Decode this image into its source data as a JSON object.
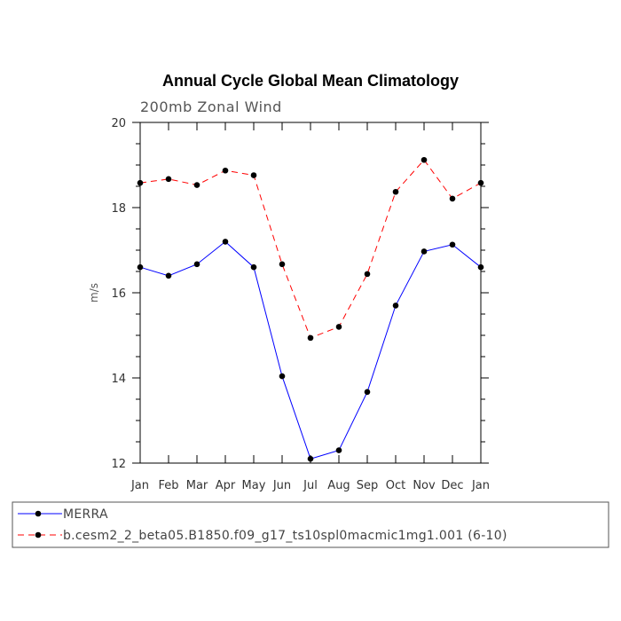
{
  "chart_data": {
    "type": "line",
    "title": "Annual Cycle Global Mean Climatology",
    "subtitle": "200mb Zonal Wind",
    "xlabel": "",
    "ylabel": "m/s",
    "categories": [
      "Jan",
      "Feb",
      "Mar",
      "Apr",
      "May",
      "Jun",
      "Jul",
      "Aug",
      "Sep",
      "Oct",
      "Nov",
      "Dec",
      "Jan"
    ],
    "ylim": [
      12,
      20
    ],
    "yticks": [
      "12",
      "14",
      "16",
      "18",
      "20"
    ],
    "grid": false,
    "legend_position": "bottom",
    "series": [
      {
        "name": "MERRA",
        "color": "#0000ff",
        "style": "solid",
        "values": [
          16.6,
          16.4,
          16.67,
          17.2,
          16.6,
          14.04,
          12.1,
          12.3,
          13.67,
          15.7,
          16.97,
          17.13,
          16.6
        ]
      },
      {
        "name": "b.cesm2_2_beta05.B1850.f09_g17_ts10spl0macmic1mg1.001 (6-10)",
        "color": "#ff0000",
        "style": "dashed",
        "values": [
          18.58,
          18.67,
          18.53,
          18.87,
          18.76,
          16.67,
          14.94,
          15.2,
          16.44,
          18.37,
          19.12,
          18.21,
          18.58
        ]
      }
    ]
  }
}
